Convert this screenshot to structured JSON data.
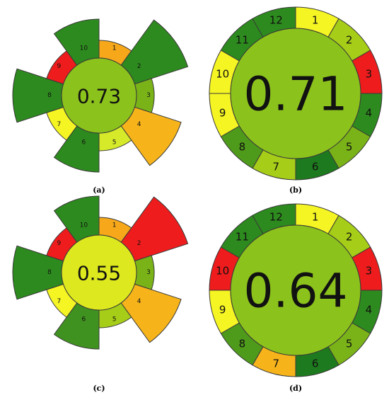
{
  "colors": {
    "dark_green": "#2d8a1e",
    "mid_green": "#4e9a1a",
    "green": "#7ab317",
    "light_green": "#a6cd17",
    "yellow_green": "#d6ea2a",
    "yellow": "#f5f523",
    "orange": "#f6b41a",
    "red": "#ee1c1c",
    "outline": "#3a3a3a"
  },
  "figures": [
    {
      "caption": "(a)",
      "type": "flower",
      "score": "0.73",
      "center_color": "#8cc21c",
      "segments": [
        {
          "label": "1",
          "color": "#f6a81a",
          "weight": 1
        },
        {
          "label": "2",
          "color": "#2d8a1e",
          "weight": 4
        },
        {
          "label": "3",
          "color": "#7ab317",
          "weight": 1
        },
        {
          "label": "4",
          "color": "#f6b41a",
          "weight": 3
        },
        {
          "label": "5",
          "color": "#d6ea2a",
          "weight": 1
        },
        {
          "label": "6",
          "color": "#2d8a1e",
          "weight": 2
        },
        {
          "label": "7",
          "color": "#f5f523",
          "weight": 1
        },
        {
          "label": "8",
          "color": "#2d8a1e",
          "weight": 3
        },
        {
          "label": "9",
          "color": "#ee1c1c",
          "weight": 1
        },
        {
          "label": "10",
          "color": "#2d8a1e",
          "weight": 2
        }
      ]
    },
    {
      "caption": "(b)",
      "type": "ring",
      "score": "0.71",
      "center_color": "#8cc21c",
      "segments": [
        {
          "label": "1",
          "color": "#f5f523"
        },
        {
          "label": "2",
          "color": "#a6cd17"
        },
        {
          "label": "3",
          "color": "#ee1c1c"
        },
        {
          "label": "4",
          "color": "#2d8a1e"
        },
        {
          "label": "5",
          "color": "#7ab317"
        },
        {
          "label": "6",
          "color": "#1e7a1e"
        },
        {
          "label": "7",
          "color": "#a6cd17"
        },
        {
          "label": "8",
          "color": "#4e9a1a"
        },
        {
          "label": "9",
          "color": "#f5f523"
        },
        {
          "label": "10",
          "color": "#f5f523"
        },
        {
          "label": "11",
          "color": "#2d8a1e"
        },
        {
          "label": "12",
          "color": "#2d8a1e"
        }
      ]
    },
    {
      "caption": "(c)",
      "type": "flower",
      "score": "0.55",
      "center_color": "#dde81e",
      "segments": [
        {
          "label": "1",
          "color": "#f6a81a",
          "weight": 1
        },
        {
          "label": "2",
          "color": "#ee1c1c",
          "weight": 4
        },
        {
          "label": "3",
          "color": "#7ab317",
          "weight": 1
        },
        {
          "label": "4",
          "color": "#f6b41a",
          "weight": 3
        },
        {
          "label": "5",
          "color": "#a6cd17",
          "weight": 1
        },
        {
          "label": "6",
          "color": "#3f9220",
          "weight": 2
        },
        {
          "label": "7",
          "color": "#f5f523",
          "weight": 1
        },
        {
          "label": "8",
          "color": "#2d8a1e",
          "weight": 3
        },
        {
          "label": "9",
          "color": "#ee1c1c",
          "weight": 1
        },
        {
          "label": "10",
          "color": "#2d8a1e",
          "weight": 2
        }
      ]
    },
    {
      "caption": "(d)",
      "type": "ring",
      "score": "0.64",
      "center_color": "#8cc21c",
      "segments": [
        {
          "label": "1",
          "color": "#f5f523"
        },
        {
          "label": "2",
          "color": "#a6cd17"
        },
        {
          "label": "3",
          "color": "#ee1c1c"
        },
        {
          "label": "4",
          "color": "#2d8a1e"
        },
        {
          "label": "5",
          "color": "#7ab317"
        },
        {
          "label": "6",
          "color": "#1e7a1e"
        },
        {
          "label": "7",
          "color": "#f6b41a"
        },
        {
          "label": "8",
          "color": "#4e9a1a"
        },
        {
          "label": "9",
          "color": "#f5f523"
        },
        {
          "label": "10",
          "color": "#ee1c1c"
        },
        {
          "label": "11",
          "color": "#2d8a1e"
        },
        {
          "label": "12",
          "color": "#2d8a1e"
        }
      ]
    }
  ]
}
